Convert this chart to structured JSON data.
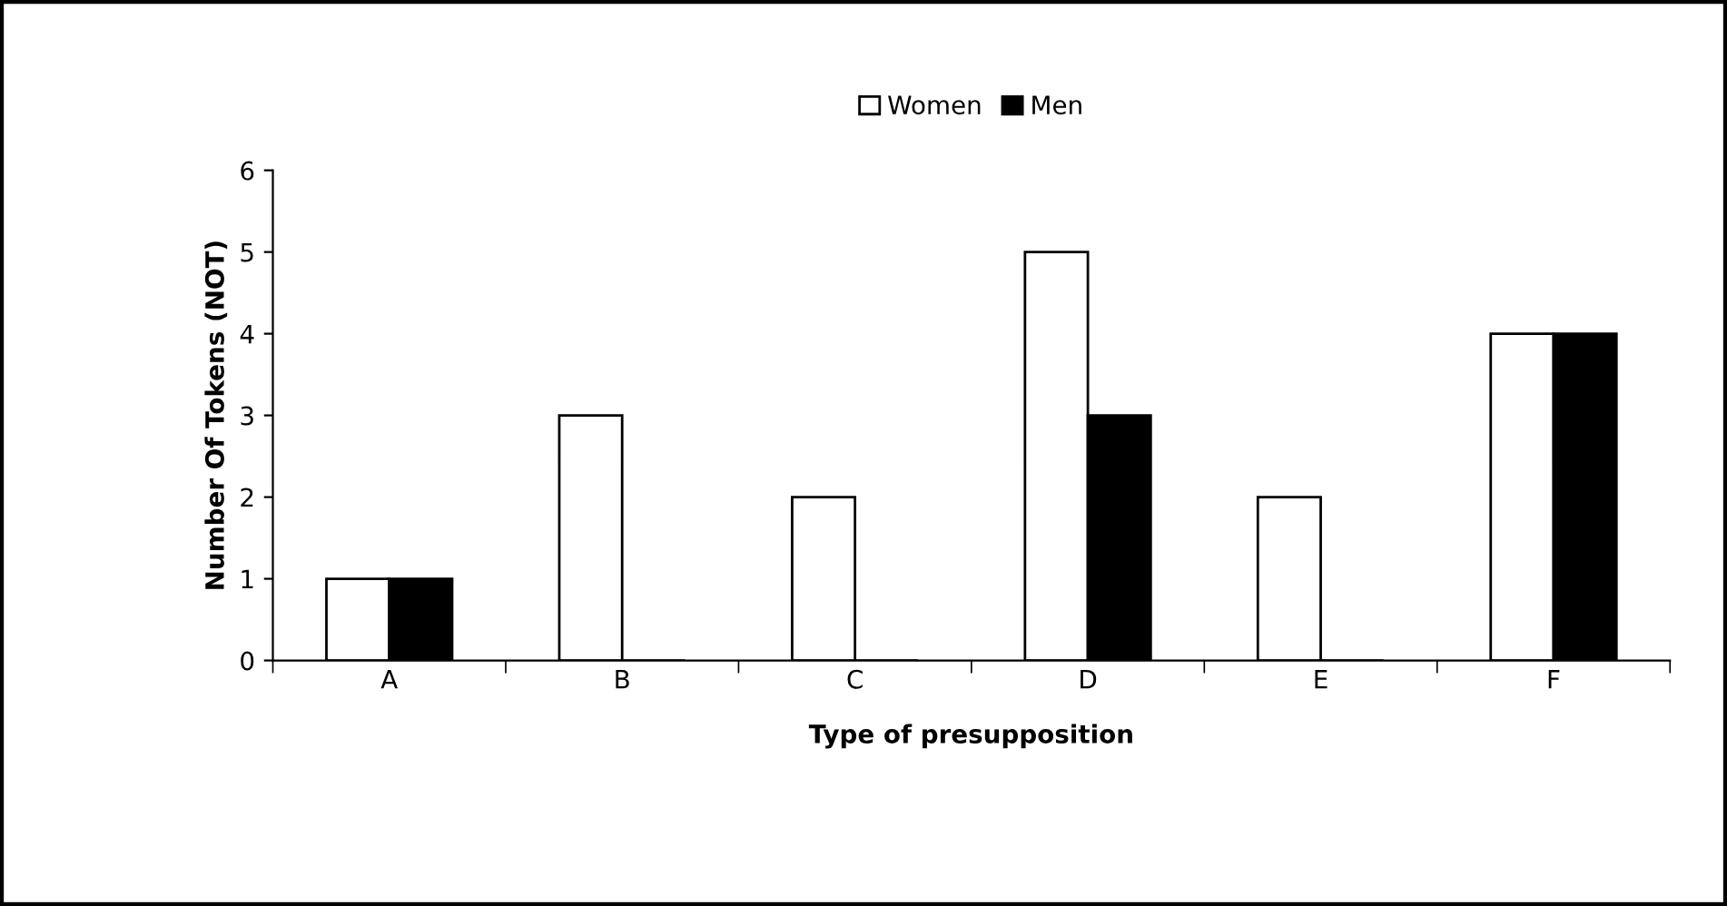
{
  "chart_data": {
    "type": "bar",
    "xlabel": "Type of presupposition",
    "ylabel": "Number Of Tokens (NOT)",
    "categories": [
      "A",
      "B",
      "C",
      "D",
      "E",
      "F"
    ],
    "series": [
      {
        "name": "Women",
        "color": "#ffffff",
        "values": [
          1,
          3,
          2,
          5,
          2,
          4
        ]
      },
      {
        "name": "Men",
        "color": "#000000",
        "values": [
          1,
          0,
          0,
          3,
          0,
          4
        ]
      }
    ],
    "ylim": [
      0,
      6
    ],
    "yticks": [
      0,
      1,
      2,
      3,
      4,
      5,
      6
    ],
    "grid": false,
    "legend": "top"
  }
}
